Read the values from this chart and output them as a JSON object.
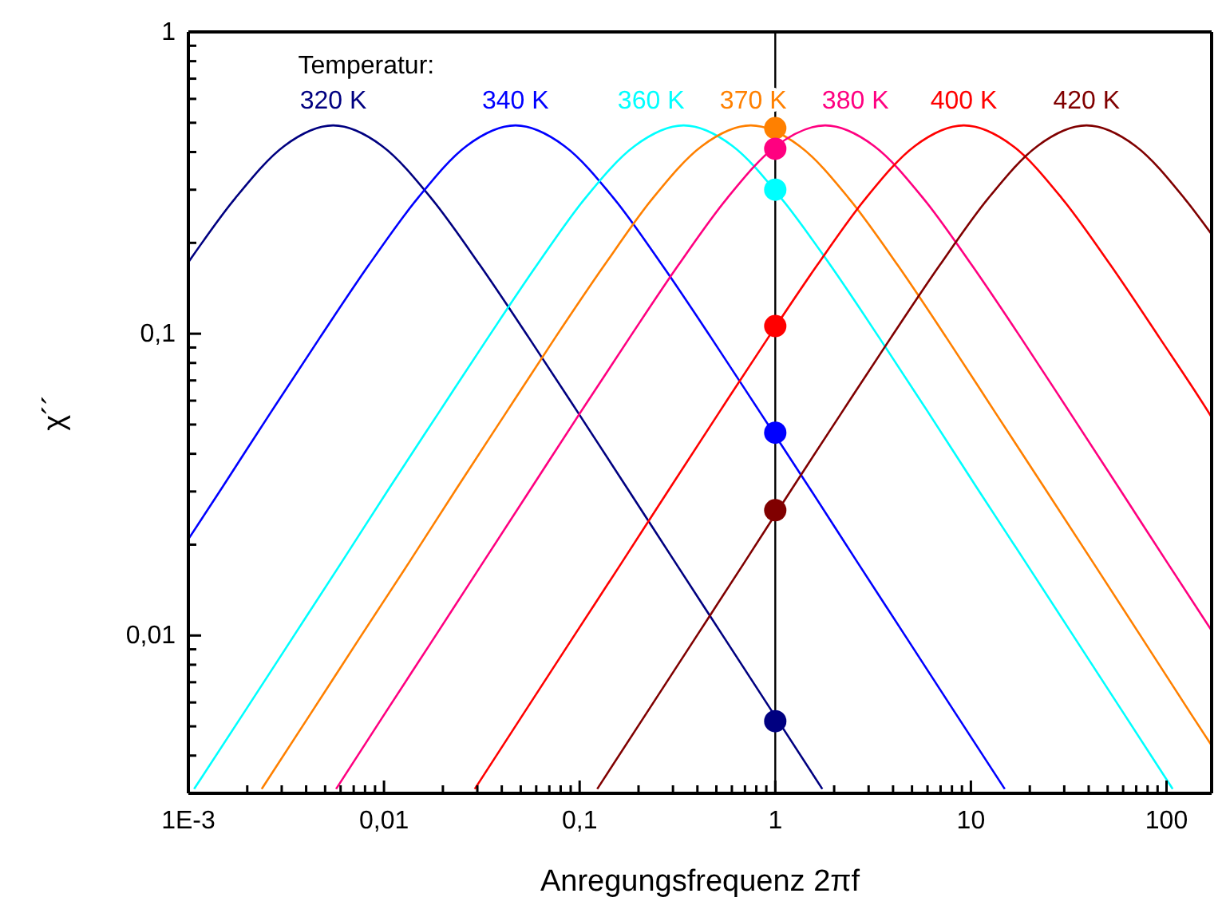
{
  "chart_data": {
    "type": "line",
    "xlabel": "Anregungsfrequenz 2πf",
    "ylabel": "χ´´",
    "legend_title": "Temperatur:",
    "log": "xy",
    "xlim": [
      0.001,
      170
    ],
    "ylim": [
      0.003,
      1
    ],
    "xticks": [
      {
        "value": 0.001,
        "label": "1E-3"
      },
      {
        "value": 0.002,
        "label": null
      },
      {
        "value": 0.003,
        "label": null
      },
      {
        "value": 0.004,
        "label": null
      },
      {
        "value": 0.005,
        "label": null
      },
      {
        "value": 0.006,
        "label": null
      },
      {
        "value": 0.007,
        "label": null
      },
      {
        "value": 0.008,
        "label": null
      },
      {
        "value": 0.009,
        "label": null
      },
      {
        "value": 0.01,
        "label": "0,01"
      },
      {
        "value": 0.02,
        "label": null
      },
      {
        "value": 0.03,
        "label": null
      },
      {
        "value": 0.04,
        "label": null
      },
      {
        "value": 0.05,
        "label": null
      },
      {
        "value": 0.06,
        "label": null
      },
      {
        "value": 0.07,
        "label": null
      },
      {
        "value": 0.08,
        "label": null
      },
      {
        "value": 0.09,
        "label": null
      },
      {
        "value": 0.1,
        "label": "0,1"
      },
      {
        "value": 0.2,
        "label": null
      },
      {
        "value": 0.3,
        "label": null
      },
      {
        "value": 0.4,
        "label": null
      },
      {
        "value": 0.5,
        "label": null
      },
      {
        "value": 0.6,
        "label": null
      },
      {
        "value": 0.7,
        "label": null
      },
      {
        "value": 0.8,
        "label": null
      },
      {
        "value": 0.9,
        "label": null
      },
      1,
      {
        "value": 2,
        "label": null
      },
      {
        "value": 3,
        "label": null
      },
      {
        "value": 4,
        "label": null
      },
      {
        "value": 5,
        "label": null
      },
      {
        "value": 6,
        "label": null
      },
      {
        "value": 7,
        "label": null
      },
      {
        "value": 8,
        "label": null
      },
      {
        "value": 9,
        "label": null
      },
      10,
      {
        "value": 20,
        "label": null
      },
      {
        "value": 30,
        "label": null
      },
      {
        "value": 40,
        "label": null
      },
      {
        "value": 50,
        "label": null
      },
      {
        "value": 60,
        "label": null
      },
      {
        "value": 70,
        "label": null
      },
      {
        "value": 80,
        "label": null
      },
      {
        "value": 90,
        "label": null
      },
      100
    ],
    "yticks": [
      {
        "value": 0.004,
        "label": null
      },
      {
        "value": 0.005,
        "label": null
      },
      {
        "value": 0.006,
        "label": null
      },
      {
        "value": 0.007,
        "label": null
      },
      {
        "value": 0.008,
        "label": null
      },
      {
        "value": 0.009,
        "label": null
      },
      {
        "value": 0.01,
        "label": "0,01"
      },
      {
        "value": 0.02,
        "label": null
      },
      {
        "value": 0.03,
        "label": null
      },
      {
        "value": 0.04,
        "label": null
      },
      {
        "value": 0.05,
        "label": null
      },
      {
        "value": 0.06,
        "label": null
      },
      {
        "value": 0.07,
        "label": null
      },
      {
        "value": 0.08,
        "label": null
      },
      {
        "value": 0.09,
        "label": null
      },
      {
        "value": 0.1,
        "label": "0,1"
      },
      {
        "value": 0.2,
        "label": null
      },
      {
        "value": 0.3,
        "label": null
      },
      {
        "value": 0.4,
        "label": null
      },
      {
        "value": 0.5,
        "label": null
      },
      {
        "value": 0.6,
        "label": null
      },
      {
        "value": 0.7,
        "label": null
      },
      {
        "value": 0.8,
        "label": null
      },
      {
        "value": 0.9,
        "label": null
      },
      1
    ],
    "grid": false,
    "ref_lines": [
      {
        "axis": "x",
        "value": 1,
        "color": "#000000"
      }
    ],
    "series": [
      {
        "name": "320 K",
        "color": "#000080",
        "x": [
          0.001,
          0.00174,
          0.00309,
          0.0055,
          0.00978,
          0.0174,
          0.0309,
          0.055,
          0.0979,
          0.174,
          0.309,
          0.55,
          0.979,
          1.74
        ],
        "values": [
          0.1725,
          0.2817,
          0.4188,
          0.49,
          0.4188,
          0.2817,
          0.1689,
          0.097,
          0.0549,
          0.03096,
          0.01742,
          0.0098,
          0.00551,
          0.0031
        ]
      },
      {
        "name": "340 K",
        "color": "#0000ff",
        "x": [
          0.001,
          0.00149,
          0.00264,
          0.0047,
          0.00836,
          0.0149,
          0.0264,
          0.047,
          0.0836,
          0.149,
          0.264,
          0.47,
          0.836,
          1.49,
          2.64,
          4.7,
          8.36,
          14.9
        ],
        "values": [
          0.02085,
          0.03096,
          0.0549,
          0.097,
          0.1689,
          0.2817,
          0.4188,
          0.49,
          0.4188,
          0.2817,
          0.1689,
          0.097,
          0.0549,
          0.03096,
          0.01742,
          0.0098,
          0.00551,
          0.0031
        ]
      },
      {
        "name": "360 K",
        "color": "#00ffff",
        "x": [
          0.00107,
          0.00191,
          0.0034,
          0.00605,
          0.0107,
          0.0191,
          0.034,
          0.0605,
          0.107,
          0.191,
          0.34,
          0.605,
          1.07,
          1.91,
          3.4,
          6.05,
          10.7,
          19.1,
          34,
          60.5,
          107.5
        ],
        "values": [
          0.0031,
          0.00551,
          0.0098,
          0.01742,
          0.03096,
          0.0549,
          0.097,
          0.1689,
          0.2817,
          0.4188,
          0.49,
          0.4188,
          0.2817,
          0.1689,
          0.097,
          0.0549,
          0.03096,
          0.01742,
          0.0098,
          0.00551,
          0.0031
        ]
      },
      {
        "name": "370 K",
        "color": "#ff8000",
        "x": [
          0.00237,
          0.00422,
          0.0075,
          0.0134,
          0.0237,
          0.0422,
          0.075,
          0.134,
          0.237,
          0.422,
          0.75,
          1.33,
          2.37,
          4.22,
          7.5,
          13.3,
          23.7,
          42.2,
          75,
          133,
          170
        ],
        "values": [
          0.0031,
          0.00551,
          0.0098,
          0.01742,
          0.03096,
          0.0549,
          0.097,
          0.1689,
          0.2817,
          0.4188,
          0.49,
          0.4188,
          0.2817,
          0.1689,
          0.097,
          0.0549,
          0.03096,
          0.01742,
          0.0098,
          0.00551,
          0.00432
        ]
      },
      {
        "name": "380 K",
        "color": "#ff0080",
        "x": [
          0.00569,
          0.0101,
          0.018,
          0.032,
          0.0569,
          0.101,
          0.18,
          0.32,
          0.569,
          1.01,
          1.8,
          3.2,
          5.69,
          10.1,
          18,
          32,
          56.9,
          101,
          170
        ],
        "values": [
          0.0031,
          0.00551,
          0.0098,
          0.01742,
          0.03096,
          0.0549,
          0.097,
          0.1689,
          0.2817,
          0.4188,
          0.49,
          0.4188,
          0.2817,
          0.1689,
          0.097,
          0.0549,
          0.03096,
          0.01742,
          0.01038
        ]
      },
      {
        "name": "400 K",
        "color": "#ff0000",
        "x": [
          0.0291,
          0.0517,
          0.092,
          0.164,
          0.291,
          0.517,
          0.92,
          1.64,
          2.91,
          5.17,
          9.2,
          16.4,
          29.1,
          51.7,
          92,
          164,
          170
        ],
        "values": [
          0.0031,
          0.00551,
          0.0098,
          0.01742,
          0.03096,
          0.0549,
          0.097,
          0.1689,
          0.2817,
          0.4188,
          0.49,
          0.4188,
          0.2817,
          0.1689,
          0.097,
          0.0549,
          0.05288
        ]
      },
      {
        "name": "420 K",
        "color": "#800000",
        "x": [
          0.123,
          0.219,
          0.39,
          0.694,
          1.23,
          2.19,
          3.9,
          6.94,
          12.3,
          21.9,
          39,
          69.4,
          123,
          170
        ],
        "values": [
          0.0031,
          0.00551,
          0.0098,
          0.01742,
          0.03096,
          0.0549,
          0.097,
          0.1689,
          0.2817,
          0.4188,
          0.49,
          0.4188,
          0.2817,
          0.2136
        ]
      },
      {
        "type": "scatter",
        "marker": "circle",
        "color": "#ff8000",
        "x": [
          1
        ],
        "values": [
          0.48
        ]
      },
      {
        "type": "scatter",
        "marker": "circle",
        "color": "#ff0080",
        "x": [
          1
        ],
        "values": [
          0.41
        ]
      },
      {
        "type": "scatter",
        "marker": "circle",
        "color": "#00ffff",
        "x": [
          1
        ],
        "values": [
          0.3
        ]
      },
      {
        "type": "scatter",
        "marker": "circle",
        "color": "#ff0000",
        "x": [
          1
        ],
        "values": [
          0.106
        ]
      },
      {
        "type": "scatter",
        "marker": "circle",
        "color": "#0000ff",
        "x": [
          1
        ],
        "values": [
          0.047
        ]
      },
      {
        "type": "scatter",
        "marker": "circle",
        "color": "#800000",
        "x": [
          1
        ],
        "values": [
          0.026
        ]
      },
      {
        "type": "scatter",
        "marker": "circle",
        "color": "#000080",
        "x": [
          1
        ],
        "values": [
          0.0052
        ]
      }
    ]
  }
}
